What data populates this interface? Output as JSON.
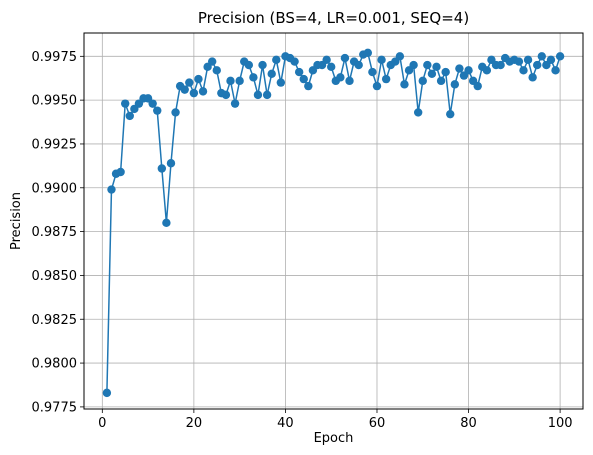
{
  "chart_data": {
    "type": "line",
    "title": "Precision (BS=4, LR=0.001, SEQ=4)",
    "xlabel": "Epoch",
    "ylabel": "Precision",
    "xlim": [
      -4,
      105
    ],
    "ylim": [
      0.97738,
      0.99883
    ],
    "xticks": [
      0,
      20,
      40,
      60,
      80,
      100
    ],
    "yticks": [
      0.9775,
      0.98,
      0.9825,
      0.985,
      0.9875,
      0.99,
      0.9925,
      0.995,
      0.9975
    ],
    "ytick_labels": [
      "0.9775",
      "0.9800",
      "0.9825",
      "0.9850",
      "0.9875",
      "0.9900",
      "0.9925",
      "0.9950",
      "0.9975"
    ],
    "grid": true,
    "color": "#1f77b4",
    "marker": "circle",
    "series": [
      {
        "x": [
          1,
          2,
          3,
          4,
          5,
          6,
          7,
          8,
          9,
          10,
          11,
          12,
          13,
          14,
          15,
          16,
          17,
          18,
          19,
          20,
          21,
          22,
          23,
          24,
          25,
          26,
          27,
          28,
          29,
          30,
          31,
          32,
          33,
          34,
          35,
          36,
          37,
          38,
          39,
          40,
          41,
          42,
          43,
          44,
          45,
          46,
          47,
          48,
          49,
          50,
          51,
          52,
          53,
          54,
          55,
          56,
          57,
          58,
          59,
          60,
          61,
          62,
          63,
          64,
          65,
          66,
          67,
          68,
          69,
          70,
          71,
          72,
          73,
          74,
          75,
          76,
          77,
          78,
          79,
          80,
          81,
          82,
          83,
          84,
          85,
          86,
          87,
          88,
          89,
          90,
          91,
          92,
          93,
          94,
          95,
          96,
          97,
          98,
          99,
          100
        ],
        "values": [
          0.9783,
          0.9899,
          0.9908,
          0.9909,
          0.9948,
          0.9941,
          0.9945,
          0.9948,
          0.9951,
          0.9951,
          0.9948,
          0.9944,
          0.9911,
          0.988,
          0.9914,
          0.9943,
          0.9958,
          0.9956,
          0.996,
          0.9954,
          0.9962,
          0.9955,
          0.9969,
          0.9972,
          0.9967,
          0.9954,
          0.9953,
          0.9961,
          0.9948,
          0.9961,
          0.9972,
          0.997,
          0.9963,
          0.9953,
          0.997,
          0.9953,
          0.9965,
          0.9973,
          0.996,
          0.9975,
          0.9974,
          0.9972,
          0.9966,
          0.9962,
          0.9958,
          0.9967,
          0.997,
          0.997,
          0.9973,
          0.9969,
          0.9961,
          0.9963,
          0.9974,
          0.9961,
          0.9972,
          0.997,
          0.9976,
          0.9977,
          0.9966,
          0.9958,
          0.9973,
          0.9962,
          0.997,
          0.9972,
          0.9975,
          0.9959,
          0.9967,
          0.997,
          0.9943,
          0.9961,
          0.997,
          0.9965,
          0.9969,
          0.9961,
          0.9966,
          0.9942,
          0.9959,
          0.9968,
          0.9964,
          0.9967,
          0.9961,
          0.9958,
          0.9969,
          0.9967,
          0.9973,
          0.997,
          0.997,
          0.9974,
          0.9972,
          0.9973,
          0.9972,
          0.9967,
          0.9973,
          0.9963,
          0.997,
          0.9975,
          0.997,
          0.9973,
          0.9967,
          0.9975
        ]
      }
    ]
  }
}
